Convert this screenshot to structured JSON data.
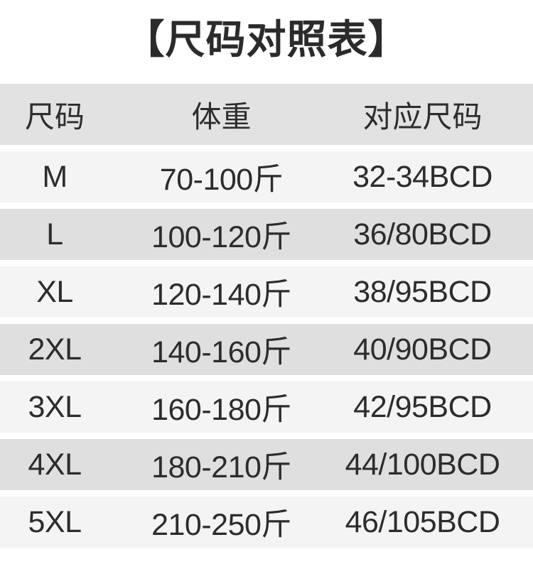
{
  "page": {
    "title": "【尺码对照表】"
  },
  "colors": {
    "page_bg": "#ffffff",
    "title_text": "#2b2b2b",
    "body_text": "#2c2c2c",
    "header_bg": "#e2e2e2",
    "row_light_bg": "#f4f4f4",
    "row_dark_bg": "#dfdfdf"
  },
  "chart_data": {
    "type": "table",
    "title": "【尺码对照表】",
    "columns": [
      "尺码",
      "体重",
      "对应尺码"
    ],
    "rows": [
      [
        "M",
        "70-100斤",
        "32-34BCD"
      ],
      [
        "L",
        "100-120斤",
        "36/80BCD"
      ],
      [
        "XL",
        "120-140斤",
        "38/95BCD"
      ],
      [
        "2XL",
        "140-160斤",
        "40/90BCD"
      ],
      [
        "3XL",
        "160-180斤",
        "42/95BCD"
      ],
      [
        "4XL",
        "180-210斤",
        "44/100BCD"
      ],
      [
        "5XL",
        "210-250斤",
        "46/105BCD"
      ]
    ],
    "layout": {
      "header_position": "top",
      "row_striping": "alternating light/dark gray bands separated by thin white gaps",
      "text_alignment": "center"
    }
  }
}
